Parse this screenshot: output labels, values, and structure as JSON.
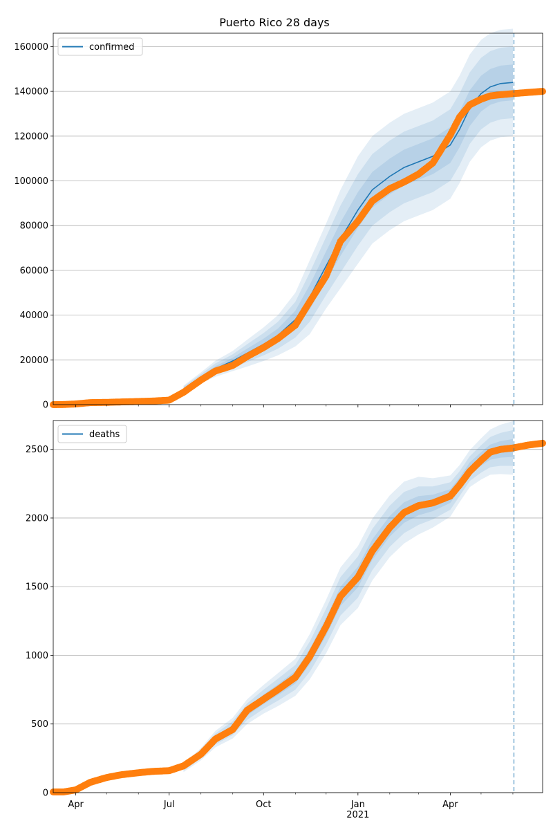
{
  "chart_data": [
    {
      "type": "line",
      "title": "Puerto Rico 28 days",
      "legend": {
        "label": "confirmed",
        "placement": "top-left"
      },
      "ylim": [
        0,
        166000
      ],
      "yticks": [
        0,
        20000,
        40000,
        60000,
        80000,
        100000,
        120000,
        140000,
        160000
      ],
      "ytick_labels": [
        "0",
        "20000",
        "40000",
        "60000",
        "80000",
        "100000",
        "120000",
        "140000",
        "160000"
      ],
      "grid": "horizontal",
      "forecast_start_date": "2021-06-02",
      "model": {
        "name": "confirmed",
        "color": "#1f77b4",
        "x": [
          "2020-07-15",
          "2020-08-01",
          "2020-08-15",
          "2020-09-01",
          "2020-09-15",
          "2020-10-01",
          "2020-10-15",
          "2020-11-01",
          "2020-11-15",
          "2020-12-01",
          "2020-12-15",
          "2021-01-01",
          "2021-01-15",
          "2021-02-01",
          "2021-02-15",
          "2021-03-01",
          "2021-03-15",
          "2021-04-01",
          "2021-04-10",
          "2021-04-20",
          "2021-05-01",
          "2021-05-10",
          "2021-05-20",
          "2021-06-01"
        ],
        "y": [
          7000,
          12000,
          16000,
          19500,
          23000,
          27000,
          31000,
          38000,
          48000,
          62000,
          74000,
          87000,
          96000,
          102000,
          106000,
          108500,
          111000,
          116000,
          123000,
          132500,
          139000,
          142000,
          143500,
          144000
        ],
        "band_half_widths": [
          [
            500,
            800,
            1200,
            1500,
            2000,
            2500,
            3000,
            4000,
            5500,
            6500,
            7500,
            8000,
            8000,
            8000,
            8000,
            8000,
            8000,
            8000,
            8000,
            8000,
            8000,
            8000,
            8000,
            8000
          ],
          [
            1000,
            1600,
            2400,
            3000,
            4000,
            5000,
            6000,
            8000,
            11000,
            13000,
            15000,
            16000,
            16000,
            16000,
            16000,
            16000,
            16000,
            16000,
            16000,
            16000,
            16000,
            16000,
            16000,
            16000
          ],
          [
            1500,
            2400,
            3600,
            4500,
            6000,
            7500,
            9000,
            12000,
            16500,
            19000,
            22000,
            24000,
            24000,
            24000,
            24000,
            24000,
            24000,
            24000,
            24000,
            24000,
            24000,
            24000,
            24000,
            24000
          ]
        ]
      },
      "observed": {
        "color": "#ff7f0e",
        "x": [
          "2020-03-10",
          "2020-03-20",
          "2020-04-01",
          "2020-04-15",
          "2020-05-01",
          "2020-05-15",
          "2020-06-01",
          "2020-06-15",
          "2020-07-01",
          "2020-07-15",
          "2020-08-01",
          "2020-08-15",
          "2020-09-01",
          "2020-09-15",
          "2020-10-01",
          "2020-10-15",
          "2020-11-01",
          "2020-11-15",
          "2020-12-01",
          "2020-12-15",
          "2021-01-01",
          "2021-01-15",
          "2021-02-01",
          "2021-02-15",
          "2021-03-01",
          "2021-03-15",
          "2021-04-01",
          "2021-04-10",
          "2021-04-20",
          "2021-05-01",
          "2021-05-10",
          "2021-05-20",
          "2021-06-01",
          "2021-06-15",
          "2021-06-30"
        ],
        "y": [
          0,
          50,
          300,
          900,
          1000,
          1200,
          1400,
          1600,
          2000,
          5500,
          11000,
          15000,
          17500,
          21500,
          25500,
          29500,
          35500,
          46000,
          57500,
          73000,
          82000,
          91000,
          96500,
          99500,
          103000,
          108000,
          120500,
          128500,
          134000,
          136500,
          138000,
          138500,
          139000,
          139500,
          140000
        ]
      }
    },
    {
      "type": "line",
      "legend": {
        "label": "deaths",
        "placement": "top-left"
      },
      "ylim": [
        0,
        2710
      ],
      "yticks": [
        0,
        500,
        1000,
        1500,
        2000,
        2500
      ],
      "ytick_labels": [
        "0",
        "500",
        "1000",
        "1500",
        "2000",
        "2500"
      ],
      "grid": "horizontal",
      "forecast_start_date": "2021-06-02",
      "model": {
        "name": "deaths",
        "color": "#1f77b4",
        "x": [
          "2020-07-15",
          "2020-08-01",
          "2020-08-15",
          "2020-09-01",
          "2020-09-15",
          "2020-10-01",
          "2020-10-15",
          "2020-11-01",
          "2020-11-15",
          "2020-12-01",
          "2020-12-15",
          "2021-01-01",
          "2021-01-15",
          "2021-02-01",
          "2021-02-15",
          "2021-03-01",
          "2021-03-15",
          "2021-04-01",
          "2021-04-10",
          "2021-04-20",
          "2021-05-01",
          "2021-05-10",
          "2021-05-20",
          "2021-06-01"
        ],
        "y": [
          180,
          280,
          390,
          470,
          590,
          680,
          750,
          840,
          990,
          1210,
          1430,
          1570,
          1770,
          1940,
          2040,
          2090,
          2110,
          2160,
          2250,
          2360,
          2430,
          2480,
          2500,
          2510
        ],
        "band_half_widths": [
          [
            10,
            15,
            20,
            25,
            30,
            35,
            40,
            45,
            55,
            65,
            70,
            75,
            75,
            75,
            75,
            70,
            60,
            50,
            45,
            45,
            50,
            55,
            60,
            65
          ],
          [
            20,
            30,
            40,
            50,
            60,
            70,
            80,
            90,
            110,
            130,
            140,
            150,
            150,
            150,
            150,
            140,
            120,
            100,
            90,
            90,
            100,
            110,
            120,
            130
          ],
          [
            30,
            45,
            60,
            75,
            90,
            105,
            120,
            135,
            165,
            195,
            210,
            225,
            225,
            225,
            225,
            210,
            180,
            150,
            135,
            135,
            150,
            165,
            180,
            195
          ]
        ]
      },
      "observed": {
        "color": "#ff7f0e",
        "x": [
          "2020-03-10",
          "2020-03-20",
          "2020-04-01",
          "2020-04-15",
          "2020-05-01",
          "2020-05-15",
          "2020-06-01",
          "2020-06-15",
          "2020-07-01",
          "2020-07-15",
          "2020-08-01",
          "2020-08-15",
          "2020-09-01",
          "2020-09-15",
          "2020-10-01",
          "2020-10-15",
          "2020-11-01",
          "2020-11-15",
          "2020-12-01",
          "2020-12-15",
          "2021-01-01",
          "2021-01-15",
          "2021-02-01",
          "2021-02-15",
          "2021-03-01",
          "2021-03-15",
          "2021-04-01",
          "2021-04-10",
          "2021-04-20",
          "2021-05-01",
          "2021-05-10",
          "2021-05-20",
          "2021-06-01",
          "2021-06-15",
          "2021-06-30"
        ],
        "y": [
          5,
          5,
          20,
          75,
          110,
          130,
          145,
          155,
          160,
          195,
          280,
          390,
          460,
          600,
          680,
          750,
          840,
          990,
          1210,
          1430,
          1570,
          1760,
          1930,
          2040,
          2090,
          2110,
          2160,
          2240,
          2340,
          2420,
          2480,
          2500,
          2510,
          2530,
          2545
        ]
      }
    }
  ],
  "xaxis": {
    "range": [
      "2020-03-10",
      "2021-06-30"
    ],
    "major_ticks": [
      {
        "date": "2020-04-01",
        "label": "Apr"
      },
      {
        "date": "2020-07-01",
        "label": "Jul"
      },
      {
        "date": "2020-10-01",
        "label": "Oct"
      },
      {
        "date": "2021-01-01",
        "label": "Jan"
      },
      {
        "date": "2021-04-01",
        "label": "Apr"
      }
    ],
    "year_label": "2021",
    "year_label_date": "2021-01-01",
    "minor_ticks": [
      "2020-05-01",
      "2020-06-01",
      "2020-08-01",
      "2020-09-01",
      "2020-11-01",
      "2020-12-01",
      "2021-02-01",
      "2021-03-01",
      "2021-05-01",
      "2021-06-01"
    ]
  }
}
